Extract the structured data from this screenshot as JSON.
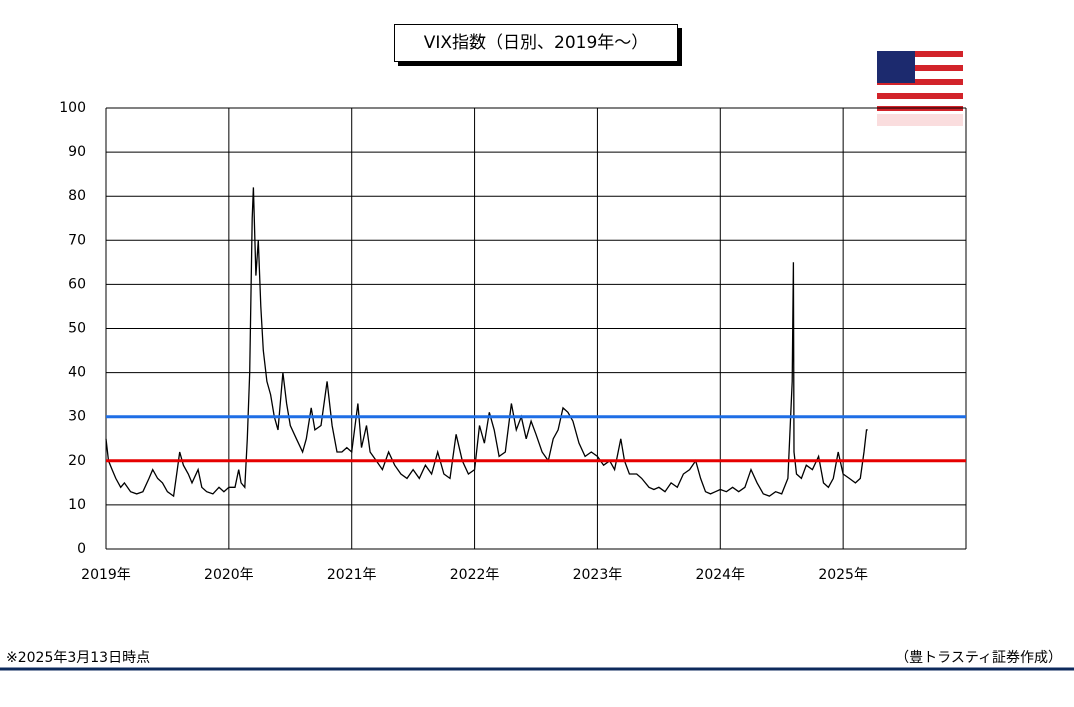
{
  "chart_data": {
    "type": "line",
    "title": "VIX指数（日別、2019年～）",
    "note": "※2025年3月13日時点",
    "source": "（豊トラスティ証券作成）",
    "color": "#000000",
    "grid": true,
    "xlim": [
      2019,
      2026
    ],
    "xticks": [
      {
        "value": 2019,
        "label": "2019年"
      },
      {
        "value": 2020,
        "label": "2020年"
      },
      {
        "value": 2021,
        "label": "2021年"
      },
      {
        "value": 2022,
        "label": "2022年"
      },
      {
        "value": 2023,
        "label": "2023年"
      },
      {
        "value": 2024,
        "label": "2024年"
      },
      {
        "value": 2025,
        "label": "2025年"
      },
      {
        "value": 2026,
        "label": null
      }
    ],
    "ylim": [
      0,
      100
    ],
    "yticks": [
      0,
      10,
      20,
      30,
      40,
      50,
      60,
      70,
      80,
      90,
      100
    ],
    "reference_lines": [
      {
        "value": 30,
        "color": "#1e6ee6"
      },
      {
        "value": 20,
        "color": "#e60000"
      }
    ],
    "x": [
      2019.0,
      2019.02,
      2019.05,
      2019.08,
      2019.12,
      2019.15,
      2019.2,
      2019.25,
      2019.3,
      2019.35,
      2019.38,
      2019.42,
      2019.46,
      2019.5,
      2019.55,
      2019.58,
      2019.6,
      2019.63,
      2019.67,
      2019.7,
      2019.75,
      2019.78,
      2019.82,
      2019.87,
      2019.92,
      2019.96,
      2020.0,
      2020.05,
      2020.08,
      2020.1,
      2020.13,
      2020.15,
      2020.17,
      2020.19,
      2020.2,
      2020.22,
      2020.24,
      2020.26,
      2020.28,
      2020.31,
      2020.34,
      2020.37,
      2020.4,
      2020.44,
      2020.47,
      2020.5,
      2020.55,
      2020.6,
      2020.63,
      2020.67,
      2020.7,
      2020.75,
      2020.8,
      2020.84,
      2020.88,
      2020.92,
      2020.96,
      2021.0,
      2021.05,
      2021.08,
      2021.12,
      2021.15,
      2021.2,
      2021.25,
      2021.3,
      2021.35,
      2021.4,
      2021.45,
      2021.5,
      2021.55,
      2021.6,
      2021.65,
      2021.7,
      2021.75,
      2021.8,
      2021.85,
      2021.9,
      2021.95,
      2022.0,
      2022.04,
      2022.08,
      2022.12,
      2022.16,
      2022.2,
      2022.25,
      2022.3,
      2022.34,
      2022.38,
      2022.42,
      2022.46,
      2022.5,
      2022.55,
      2022.6,
      2022.64,
      2022.68,
      2022.72,
      2022.76,
      2022.8,
      2022.85,
      2022.9,
      2022.95,
      2023.0,
      2023.05,
      2023.1,
      2023.14,
      2023.19,
      2023.22,
      2023.26,
      2023.32,
      2023.36,
      2023.42,
      2023.46,
      2023.5,
      2023.55,
      2023.6,
      2023.65,
      2023.7,
      2023.75,
      2023.8,
      2023.84,
      2023.88,
      2023.92,
      2023.96,
      2024.0,
      2024.05,
      2024.1,
      2024.15,
      2024.2,
      2024.25,
      2024.3,
      2024.35,
      2024.4,
      2024.45,
      2024.5,
      2024.55,
      2024.585,
      2024.595,
      2024.6,
      2024.62,
      2024.66,
      2024.7,
      2024.75,
      2024.8,
      2024.84,
      2024.88,
      2024.92,
      2024.96,
      2025.0,
      2025.05,
      2025.1,
      2025.14,
      2025.17,
      2025.19,
      2025.2
    ],
    "values": [
      25,
      20,
      18,
      16,
      14,
      15,
      13,
      12.5,
      13,
      16,
      18,
      16,
      15,
      13,
      12,
      18,
      22,
      19,
      17,
      15,
      18,
      14,
      13,
      12.5,
      14,
      13,
      14,
      14,
      18,
      15,
      14,
      25,
      40,
      75,
      82,
      62,
      70,
      55,
      45,
      38,
      35,
      30,
      27,
      40,
      33,
      28,
      25,
      22,
      25,
      32,
      27,
      28,
      38,
      28,
      22,
      22,
      23,
      22,
      33,
      23,
      28,
      22,
      20,
      18,
      22,
      19,
      17,
      16,
      18,
      16,
      19,
      17,
      22,
      17,
      16,
      26,
      20,
      17,
      18,
      28,
      24,
      31,
      27,
      21,
      22,
      33,
      27,
      30,
      25,
      29,
      26,
      22,
      20,
      25,
      27,
      32,
      31,
      29,
      24,
      21,
      22,
      21,
      19,
      20,
      18,
      25,
      20,
      17,
      17,
      16,
      14,
      13.5,
      14,
      13,
      15,
      14,
      17,
      18,
      20,
      16,
      13,
      12.5,
      13,
      13.5,
      13,
      14,
      13,
      14,
      18,
      15,
      12.5,
      12,
      13,
      12.5,
      16,
      38,
      65,
      22,
      17,
      16,
      19,
      18,
      21,
      15,
      14,
      16,
      22,
      17,
      16,
      15,
      16,
      22,
      27,
      27
    ]
  }
}
